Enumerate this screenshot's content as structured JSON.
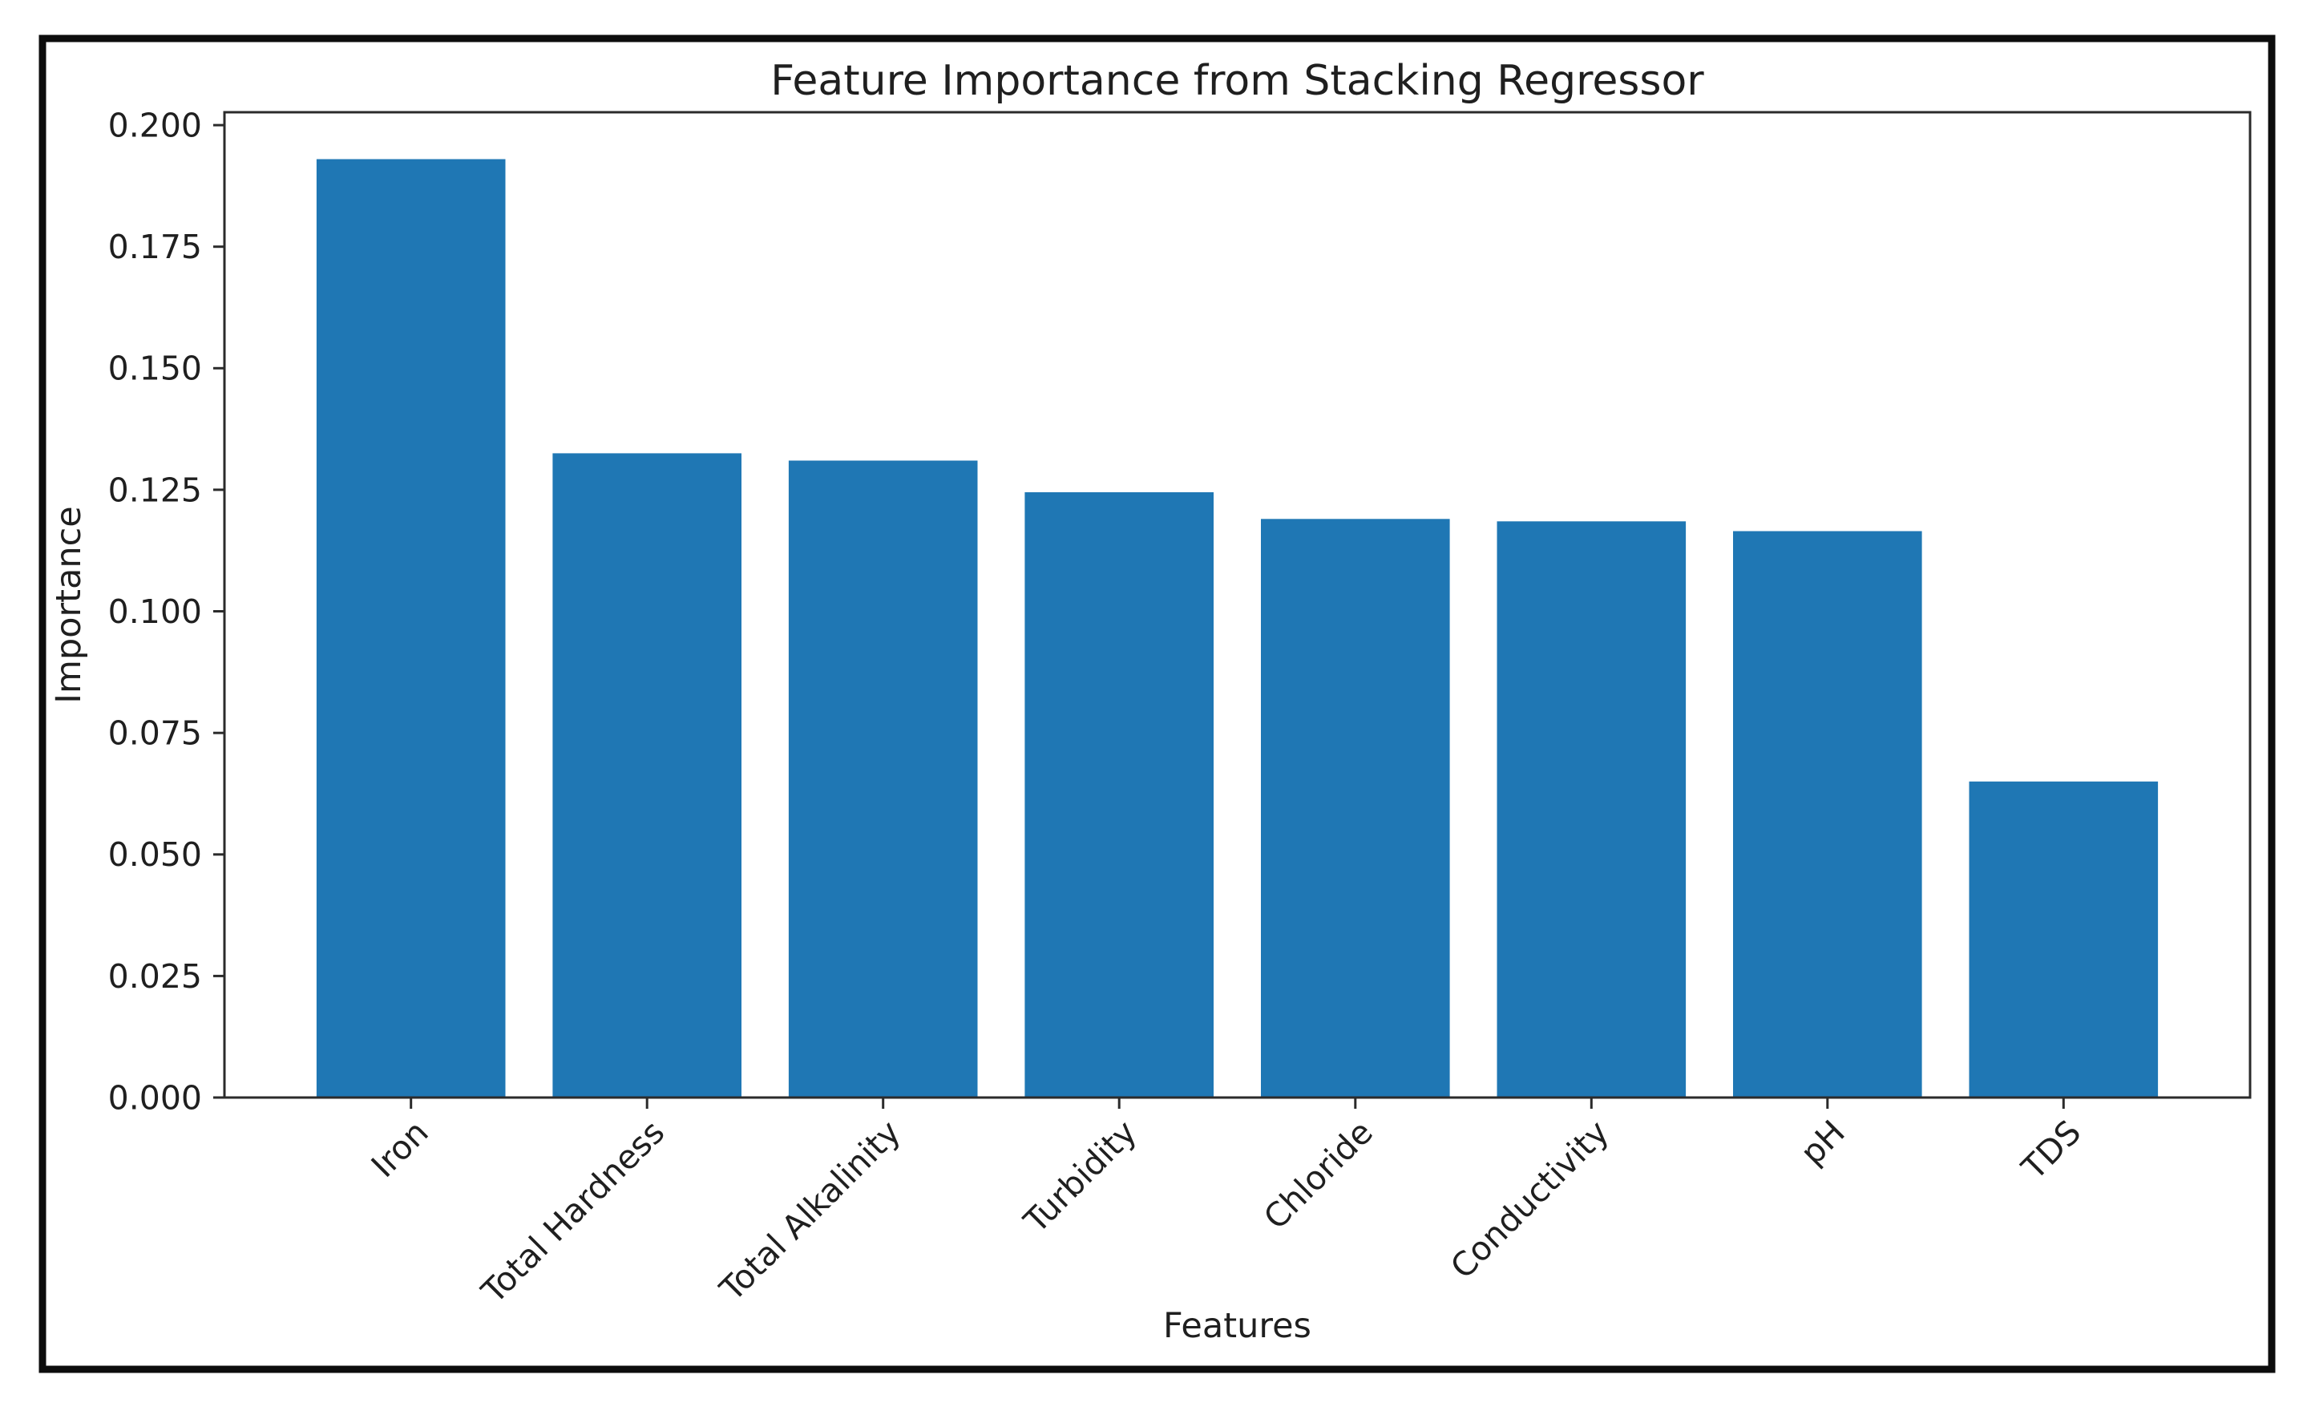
{
  "window": {
    "background": "#ffffff",
    "frame_color": "#0d0d0d",
    "spine_color": "#2b2b2b",
    "text_color": "#1f1f1f"
  },
  "chart_data": {
    "type": "bar",
    "title": "Feature Importance from Stacking Regressor",
    "xlabel": "Features",
    "ylabel": "Importance",
    "categories": [
      "Iron",
      "Total Hardness",
      "Total Alkalinity",
      "Turbidity",
      "Chloride",
      "Conductivity",
      "pH",
      "TDS"
    ],
    "values": [
      0.193,
      0.1325,
      0.131,
      0.1245,
      0.119,
      0.1185,
      0.1165,
      0.065
    ],
    "bar_color": "#1f77b4",
    "ytick_labels": [
      "0.000",
      "0.025",
      "0.050",
      "0.075",
      "0.100",
      "0.125",
      "0.150",
      "0.175",
      "0.200"
    ],
    "ylim": [
      0,
      0.20265
    ],
    "bar_width_fraction": 0.8,
    "xtick_rotation_deg": 45,
    "grid": false,
    "legend_position": "none"
  }
}
